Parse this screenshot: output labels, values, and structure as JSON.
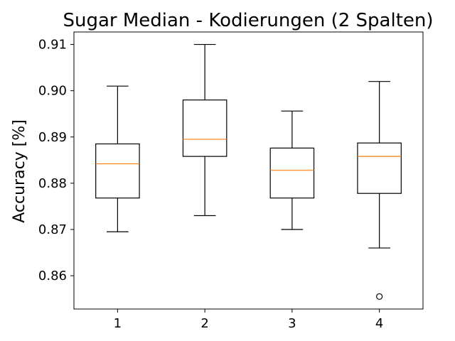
{
  "chart_data": {
    "type": "box",
    "title": "Sugar Median - Kodierungen (2 Spalten)",
    "xlabel": "",
    "ylabel": "Accuracy [%]",
    "categories": [
      "1",
      "2",
      "3",
      "4"
    ],
    "ylim": [
      0.8528,
      0.9127
    ],
    "yticks": [
      "0.86",
      "0.87",
      "0.88",
      "0.89",
      "0.90",
      "0.91"
    ],
    "ytick_values": [
      0.86,
      0.87,
      0.88,
      0.89,
      0.9,
      0.91
    ],
    "boxes": [
      {
        "category": "1",
        "whisker_low": 0.8695,
        "q1": 0.8768,
        "median": 0.8842,
        "q3": 0.8885,
        "whisker_high": 0.901,
        "outliers": []
      },
      {
        "category": "2",
        "whisker_low": 0.873,
        "q1": 0.8858,
        "median": 0.8895,
        "q3": 0.898,
        "whisker_high": 0.91,
        "outliers": []
      },
      {
        "category": "3",
        "whisker_low": 0.87,
        "q1": 0.8768,
        "median": 0.8828,
        "q3": 0.8876,
        "whisker_high": 0.8956,
        "outliers": []
      },
      {
        "category": "4",
        "whisker_low": 0.866,
        "q1": 0.8778,
        "median": 0.8858,
        "q3": 0.8887,
        "whisker_high": 0.902,
        "outliers": [
          0.8555
        ]
      }
    ],
    "grid": false,
    "colors": {
      "box": "#000000",
      "median": "#ff7f0e",
      "frame": "#000000",
      "background": "#ffffff"
    }
  }
}
